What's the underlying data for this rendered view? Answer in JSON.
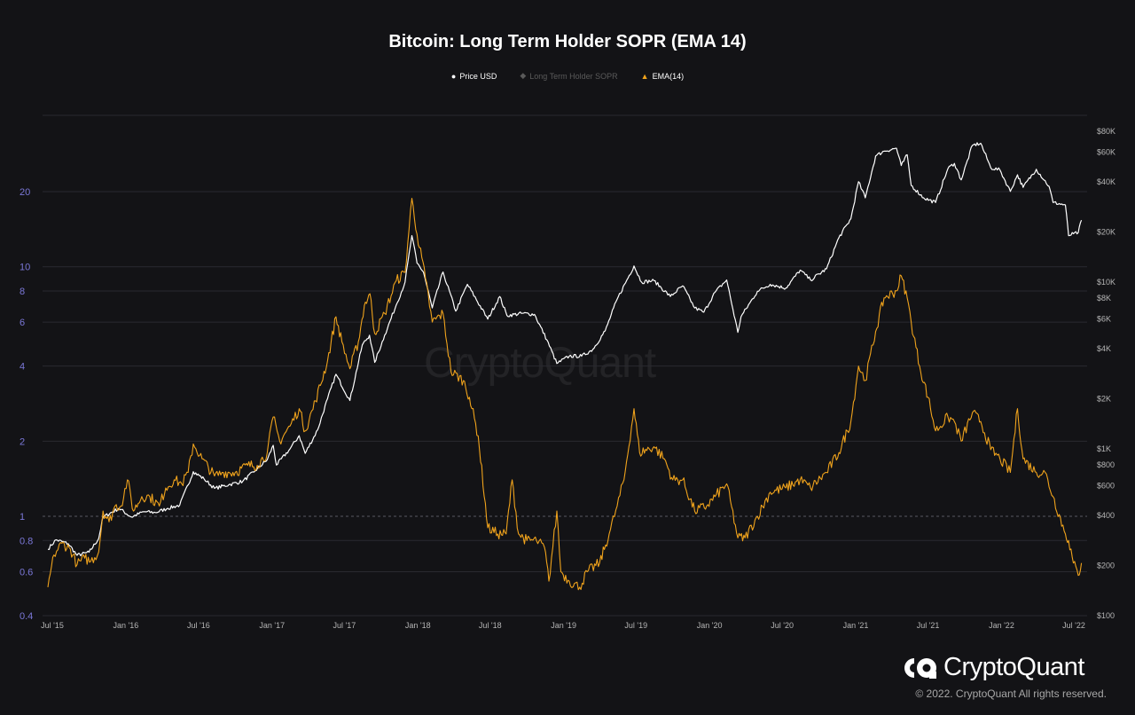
{
  "chart_data": {
    "type": "line",
    "title": "Bitcoin: Long Term Holder SOPR (EMA 14)",
    "legend": {
      "placement": "top-center",
      "items": [
        {
          "label": "Price USD",
          "marker": "●",
          "color": "#ffffff"
        },
        {
          "label": "Long Term Holder SOPR",
          "marker": "◆",
          "color": "#6a6a6a"
        },
        {
          "label": "EMA(14)",
          "marker": "▲",
          "color": "#f0a31c"
        }
      ]
    },
    "x_ticks": [
      "Jul '15",
      "Jan '16",
      "Jul '16",
      "Jan '17",
      "Jul '17",
      "Jan '18",
      "Jul '18",
      "Jan '19",
      "Jul '19",
      "Jan '20",
      "Jul '20",
      "Jan '21",
      "Jul '21",
      "Jan '22",
      "Jul '22"
    ],
    "x_range": [
      "2015-06-15",
      "2022-07-20"
    ],
    "left_axis": {
      "scale": "log",
      "range": [
        0.4,
        40
      ],
      "ticks": [
        "0.4",
        "0.6",
        "0.8",
        "1",
        "2",
        "4",
        "6",
        "8",
        "10",
        "20"
      ],
      "tick_values": [
        0.4,
        0.6,
        0.8,
        1,
        2,
        4,
        6,
        8,
        10,
        20
      ]
    },
    "right_axis": {
      "scale": "log",
      "range": [
        100,
        100000
      ],
      "ticks": [
        "$100",
        "$200",
        "$400",
        "$600",
        "$800",
        "$1K",
        "$2K",
        "$4K",
        "$6K",
        "$8K",
        "$10K",
        "$20K",
        "$40K",
        "$60K",
        "$80K"
      ],
      "tick_values": [
        100,
        200,
        400,
        600,
        800,
        1000,
        2000,
        4000,
        6000,
        8000,
        10000,
        20000,
        40000,
        60000,
        80000
      ]
    },
    "grid": true,
    "reference_line": 1,
    "series": [
      {
        "name": "Price USD",
        "axis": "right",
        "color": "#ffffff",
        "points": [
          [
            "2015-06-20",
            250
          ],
          [
            "2015-07-10",
            285
          ],
          [
            "2015-08-10",
            270
          ],
          [
            "2015-09-01",
            230
          ],
          [
            "2015-10-01",
            240
          ],
          [
            "2015-10-25",
            290
          ],
          [
            "2015-11-05",
            390
          ],
          [
            "2015-12-15",
            440
          ],
          [
            "2016-01-15",
            390
          ],
          [
            "2016-02-15",
            420
          ],
          [
            "2016-03-15",
            415
          ],
          [
            "2016-04-15",
            440
          ],
          [
            "2016-05-15",
            460
          ],
          [
            "2016-06-18",
            730
          ],
          [
            "2016-07-15",
            660
          ],
          [
            "2016-08-10",
            580
          ],
          [
            "2016-09-15",
            610
          ],
          [
            "2016-10-20",
            640
          ],
          [
            "2016-11-20",
            740
          ],
          [
            "2016-12-20",
            860
          ],
          [
            "2017-01-04",
            1050
          ],
          [
            "2017-01-12",
            800
          ],
          [
            "2017-02-15",
            1000
          ],
          [
            "2017-03-10",
            1200
          ],
          [
            "2017-03-25",
            940
          ],
          [
            "2017-04-25",
            1300
          ],
          [
            "2017-05-20",
            2000
          ],
          [
            "2017-06-10",
            2800
          ],
          [
            "2017-07-15",
            1950
          ],
          [
            "2017-08-15",
            4200
          ],
          [
            "2017-09-02",
            4800
          ],
          [
            "2017-09-15",
            3300
          ],
          [
            "2017-10-10",
            4800
          ],
          [
            "2017-11-08",
            7300
          ],
          [
            "2017-11-30",
            10000
          ],
          [
            "2017-12-17",
            19000
          ],
          [
            "2017-12-30",
            13000
          ],
          [
            "2018-01-15",
            11500
          ],
          [
            "2018-02-06",
            7000
          ],
          [
            "2018-03-05",
            11500
          ],
          [
            "2018-04-06",
            6700
          ],
          [
            "2018-05-05",
            9700
          ],
          [
            "2018-06-25",
            6000
          ],
          [
            "2018-07-25",
            8200
          ],
          [
            "2018-08-12",
            6300
          ],
          [
            "2018-09-20",
            6500
          ],
          [
            "2018-10-20",
            6400
          ],
          [
            "2018-11-20",
            4500
          ],
          [
            "2018-12-15",
            3250
          ],
          [
            "2019-01-15",
            3600
          ],
          [
            "2019-02-15",
            3600
          ],
          [
            "2019-03-15",
            3950
          ],
          [
            "2019-04-15",
            5100
          ],
          [
            "2019-05-15",
            7900
          ],
          [
            "2019-06-26",
            12500
          ],
          [
            "2019-07-15",
            10000
          ],
          [
            "2019-08-15",
            10200
          ],
          [
            "2019-09-25",
            8200
          ],
          [
            "2019-10-26",
            9500
          ],
          [
            "2019-11-25",
            7000
          ],
          [
            "2019-12-18",
            6600
          ],
          [
            "2020-01-15",
            8700
          ],
          [
            "2020-02-13",
            10300
          ],
          [
            "2020-03-12",
            5000
          ],
          [
            "2020-03-20",
            6200
          ],
          [
            "2020-04-30",
            8800
          ],
          [
            "2020-06-01",
            9700
          ],
          [
            "2020-07-10",
            9200
          ],
          [
            "2020-08-15",
            11800
          ],
          [
            "2020-09-10",
            10300
          ],
          [
            "2020-10-20",
            12000
          ],
          [
            "2020-11-20",
            18500
          ],
          [
            "2020-12-20",
            24000
          ],
          [
            "2021-01-08",
            40000
          ],
          [
            "2021-01-25",
            32000
          ],
          [
            "2021-02-20",
            57000
          ],
          [
            "2021-03-13",
            61000
          ],
          [
            "2021-04-13",
            63500
          ],
          [
            "2021-04-25",
            50000
          ],
          [
            "2021-05-10",
            58000
          ],
          [
            "2021-05-20",
            38000
          ],
          [
            "2021-06-20",
            32000
          ],
          [
            "2021-07-20",
            30000
          ],
          [
            "2021-08-20",
            48000
          ],
          [
            "2021-09-05",
            51500
          ],
          [
            "2021-09-22",
            41000
          ],
          [
            "2021-10-20",
            66000
          ],
          [
            "2021-11-10",
            68000
          ],
          [
            "2021-12-05",
            48500
          ],
          [
            "2021-12-28",
            47000
          ],
          [
            "2022-01-23",
            35000
          ],
          [
            "2022-02-10",
            44000
          ],
          [
            "2022-02-24",
            37000
          ],
          [
            "2022-03-29",
            47500
          ],
          [
            "2022-04-30",
            37500
          ],
          [
            "2022-05-10",
            30000
          ],
          [
            "2022-06-10",
            29000
          ],
          [
            "2022-06-18",
            19000
          ],
          [
            "2022-06-30",
            19500
          ],
          [
            "2022-07-12",
            19800
          ],
          [
            "2022-07-20",
            23500
          ]
        ]
      },
      {
        "name": "EMA(14)",
        "axis": "left",
        "color": "#f0a31c",
        "points": [
          [
            "2015-06-20",
            0.52
          ],
          [
            "2015-07-05",
            0.7
          ],
          [
            "2015-07-25",
            0.78
          ],
          [
            "2015-08-15",
            0.74
          ],
          [
            "2015-09-01",
            0.64
          ],
          [
            "2015-09-20",
            0.68
          ],
          [
            "2015-10-05",
            0.66
          ],
          [
            "2015-10-25",
            0.72
          ],
          [
            "2015-11-05",
            1.05
          ],
          [
            "2015-11-20",
            0.95
          ],
          [
            "2015-12-05",
            1.1
          ],
          [
            "2015-12-20",
            1.1
          ],
          [
            "2016-01-05",
            1.4
          ],
          [
            "2016-01-20",
            1.05
          ],
          [
            "2016-02-10",
            1.2
          ],
          [
            "2016-03-01",
            1.2
          ],
          [
            "2016-03-25",
            1.1
          ],
          [
            "2016-04-10",
            1.3
          ],
          [
            "2016-05-01",
            1.4
          ],
          [
            "2016-05-20",
            1.35
          ],
          [
            "2016-06-05",
            1.5
          ],
          [
            "2016-06-18",
            1.95
          ],
          [
            "2016-07-10",
            1.7
          ],
          [
            "2016-08-10",
            1.45
          ],
          [
            "2016-09-01",
            1.5
          ],
          [
            "2016-10-01",
            1.5
          ],
          [
            "2016-11-01",
            1.6
          ],
          [
            "2016-11-25",
            1.6
          ],
          [
            "2016-12-20",
            1.8
          ],
          [
            "2017-01-04",
            2.5
          ],
          [
            "2017-01-20",
            2.0
          ],
          [
            "2017-02-15",
            2.3
          ],
          [
            "2017-03-10",
            2.7
          ],
          [
            "2017-03-25",
            2.2
          ],
          [
            "2017-04-20",
            2.9
          ],
          [
            "2017-05-20",
            4.2
          ],
          [
            "2017-06-10",
            6.3
          ],
          [
            "2017-06-25",
            5.0
          ],
          [
            "2017-07-15",
            3.9
          ],
          [
            "2017-08-05",
            5.0
          ],
          [
            "2017-08-20",
            7.0
          ],
          [
            "2017-09-03",
            7.8
          ],
          [
            "2017-09-15",
            5.4
          ],
          [
            "2017-10-10",
            6.5
          ],
          [
            "2017-11-08",
            8.8
          ],
          [
            "2017-11-30",
            9.5
          ],
          [
            "2017-12-17",
            18.8
          ],
          [
            "2017-12-30",
            13.5
          ],
          [
            "2018-01-20",
            9.0
          ],
          [
            "2018-02-06",
            6.0
          ],
          [
            "2018-03-05",
            6.5
          ],
          [
            "2018-03-25",
            3.8
          ],
          [
            "2018-04-25",
            3.5
          ],
          [
            "2018-05-10",
            3.0
          ],
          [
            "2018-06-01",
            2.1
          ],
          [
            "2018-06-25",
            0.9
          ],
          [
            "2018-07-20",
            0.85
          ],
          [
            "2018-08-10",
            0.85
          ],
          [
            "2018-08-25",
            1.4
          ],
          [
            "2018-09-10",
            0.85
          ],
          [
            "2018-10-01",
            0.8
          ],
          [
            "2018-10-25",
            0.8
          ],
          [
            "2018-11-14",
            0.75
          ],
          [
            "2018-11-25",
            0.55
          ],
          [
            "2018-12-15",
            1.05
          ],
          [
            "2018-12-25",
            0.6
          ],
          [
            "2019-01-15",
            0.55
          ],
          [
            "2019-02-10",
            0.52
          ],
          [
            "2019-03-01",
            0.6
          ],
          [
            "2019-04-01",
            0.65
          ],
          [
            "2019-04-25",
            0.85
          ],
          [
            "2019-05-15",
            1.1
          ],
          [
            "2019-06-01",
            1.4
          ],
          [
            "2019-06-26",
            2.7
          ],
          [
            "2019-07-10",
            1.8
          ],
          [
            "2019-08-15",
            1.9
          ],
          [
            "2019-09-10",
            1.7
          ],
          [
            "2019-10-01",
            1.4
          ],
          [
            "2019-10-26",
            1.4
          ],
          [
            "2019-11-25",
            1.05
          ],
          [
            "2019-12-25",
            1.1
          ],
          [
            "2020-01-15",
            1.2
          ],
          [
            "2020-02-13",
            1.35
          ],
          [
            "2020-03-12",
            0.82
          ],
          [
            "2020-03-30",
            0.82
          ],
          [
            "2020-04-30",
            1.0
          ],
          [
            "2020-06-01",
            1.25
          ],
          [
            "2020-07-10",
            1.3
          ],
          [
            "2020-08-15",
            1.4
          ],
          [
            "2020-09-10",
            1.3
          ],
          [
            "2020-10-20",
            1.5
          ],
          [
            "2020-11-20",
            1.8
          ],
          [
            "2020-12-20",
            2.4
          ],
          [
            "2021-01-08",
            4.0
          ],
          [
            "2021-01-25",
            3.5
          ],
          [
            "2021-02-20",
            5.5
          ],
          [
            "2021-03-13",
            7.5
          ],
          [
            "2021-04-13",
            8.0
          ],
          [
            "2021-04-25",
            9.2
          ],
          [
            "2021-05-10",
            7.5
          ],
          [
            "2021-05-20",
            6.0
          ],
          [
            "2021-06-10",
            4.0
          ],
          [
            "2021-07-01",
            3.0
          ],
          [
            "2021-07-20",
            2.2
          ],
          [
            "2021-08-20",
            2.5
          ],
          [
            "2021-09-05",
            2.4
          ],
          [
            "2021-09-22",
            2.0
          ],
          [
            "2021-10-20",
            2.6
          ],
          [
            "2021-11-10",
            2.4
          ],
          [
            "2021-12-05",
            1.85
          ],
          [
            "2021-12-28",
            1.7
          ],
          [
            "2022-01-23",
            1.5
          ],
          [
            "2022-02-10",
            2.7
          ],
          [
            "2022-02-24",
            1.7
          ],
          [
            "2022-03-29",
            1.5
          ],
          [
            "2022-04-20",
            1.5
          ],
          [
            "2022-05-10",
            1.2
          ],
          [
            "2022-06-10",
            0.85
          ],
          [
            "2022-06-18",
            0.8
          ],
          [
            "2022-06-30",
            0.65
          ],
          [
            "2022-07-12",
            0.58
          ],
          [
            "2022-07-20",
            0.65
          ]
        ]
      }
    ]
  },
  "watermark": "CryptoQuant",
  "brand": {
    "name": "CryptoQuant",
    "copyright": "© 2022. CryptoQuant All rights reserved."
  }
}
